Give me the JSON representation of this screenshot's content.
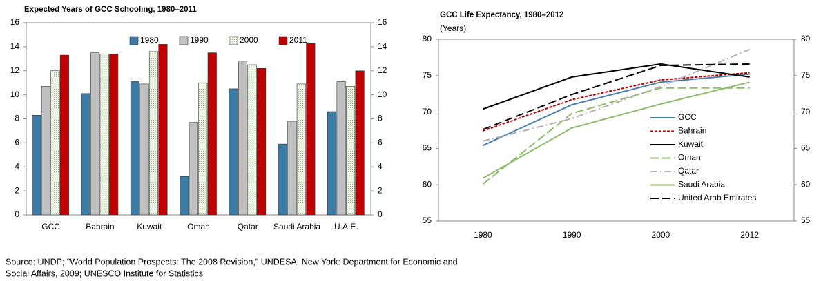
{
  "chart_data": [
    {
      "type": "bar",
      "title": "Expected Years of GCC Schooling, 1980–2011",
      "categories": [
        "GCC",
        "Bahrain",
        "Kuwait",
        "Oman",
        "Qatar",
        "Saudi Arabia",
        "U.A.E."
      ],
      "series": [
        {
          "name": "1980",
          "color": "#3a7ca5",
          "values": [
            8.3,
            10.1,
            11.1,
            3.2,
            10.5,
            5.9,
            8.6
          ]
        },
        {
          "name": "1990",
          "color": "#c0c0c0",
          "values": [
            10.7,
            13.5,
            10.9,
            7.7,
            12.8,
            7.8,
            11.1
          ]
        },
        {
          "name": "2000",
          "color": "#8fbc6a",
          "values": [
            12.0,
            13.4,
            13.6,
            11.0,
            12.5,
            10.9,
            10.7
          ]
        },
        {
          "name": "2011",
          "color": "#c00000",
          "values": [
            13.3,
            13.4,
            14.2,
            13.5,
            12.2,
            14.3,
            12.0
          ]
        }
      ],
      "ylim": [
        0,
        16
      ],
      "yticks": [
        0,
        2,
        4,
        6,
        8,
        10,
        12,
        14,
        16
      ],
      "legend": "top"
    },
    {
      "type": "line",
      "title": "GCC Life Expectancy, 1980–2012",
      "subtitle": "(Years)",
      "categories": [
        "1980",
        "1990",
        "2000",
        "2012"
      ],
      "series": [
        {
          "name": "GCC",
          "color": "#4a7eb0",
          "dash": "",
          "values": [
            65.4,
            71.0,
            74.1,
            75.2
          ]
        },
        {
          "name": "Bahrain",
          "color": "#c00000",
          "dash": "4 2",
          "values": [
            67.4,
            71.7,
            74.4,
            75.4
          ]
        },
        {
          "name": "Kuwait",
          "color": "#000000",
          "dash": "",
          "values": [
            70.4,
            74.8,
            76.6,
            74.8
          ]
        },
        {
          "name": "Oman",
          "color": "#8fbc6a",
          "dash": "12 5",
          "values": [
            60.1,
            69.8,
            73.3,
            73.3
          ]
        },
        {
          "name": "Qatar",
          "color": "#b0b0b0",
          "dash": "10 4 2 4",
          "values": [
            66.0,
            69.1,
            73.5,
            78.6
          ]
        },
        {
          "name": "Saudi Arabia",
          "color": "#8fbc6a",
          "dash": "",
          "values": [
            60.9,
            67.8,
            71.1,
            74.1
          ]
        },
        {
          "name": "United Arab Emirates",
          "color": "#000000",
          "dash": "12 5",
          "values": [
            67.6,
            72.4,
            76.4,
            76.6
          ]
        }
      ],
      "ylim": [
        55,
        80
      ],
      "yticks": [
        55,
        60,
        65,
        70,
        75,
        80
      ],
      "legend": "right"
    }
  ],
  "source": [
    "Source: UNDP; \"World Population Prospects: The 2008 Revision,\" UNDESA, New York: Department for Economic and",
    "Social Affairs, 2009; UNESCO Institute for Statistics"
  ]
}
